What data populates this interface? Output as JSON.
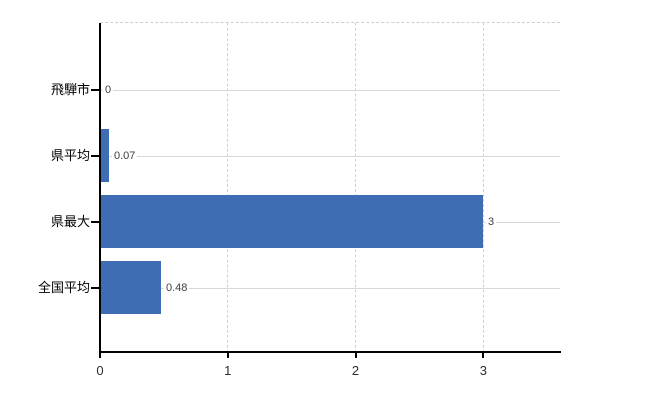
{
  "chart_data": {
    "type": "bar",
    "orientation": "horizontal",
    "title": "",
    "xlabel": "",
    "ylabel": "",
    "categories": [
      "飛騨市",
      "県平均",
      "県最大",
      "全国平均"
    ],
    "values": [
      0,
      0.07,
      3,
      0.48
    ],
    "value_labels": [
      "0",
      "0.07",
      "3",
      "0.48"
    ],
    "x_ticks": [
      0,
      1,
      2,
      3
    ],
    "x_tick_labels": [
      "0",
      "1",
      "2",
      "3"
    ],
    "xlim": [
      0,
      3.6
    ],
    "grid": true,
    "legend": false,
    "bar_color": "#3e6db4",
    "hgrid_color": "#d4dad4",
    "vgrid_color": "#d1d1d1",
    "axis_color": "#000000"
  }
}
